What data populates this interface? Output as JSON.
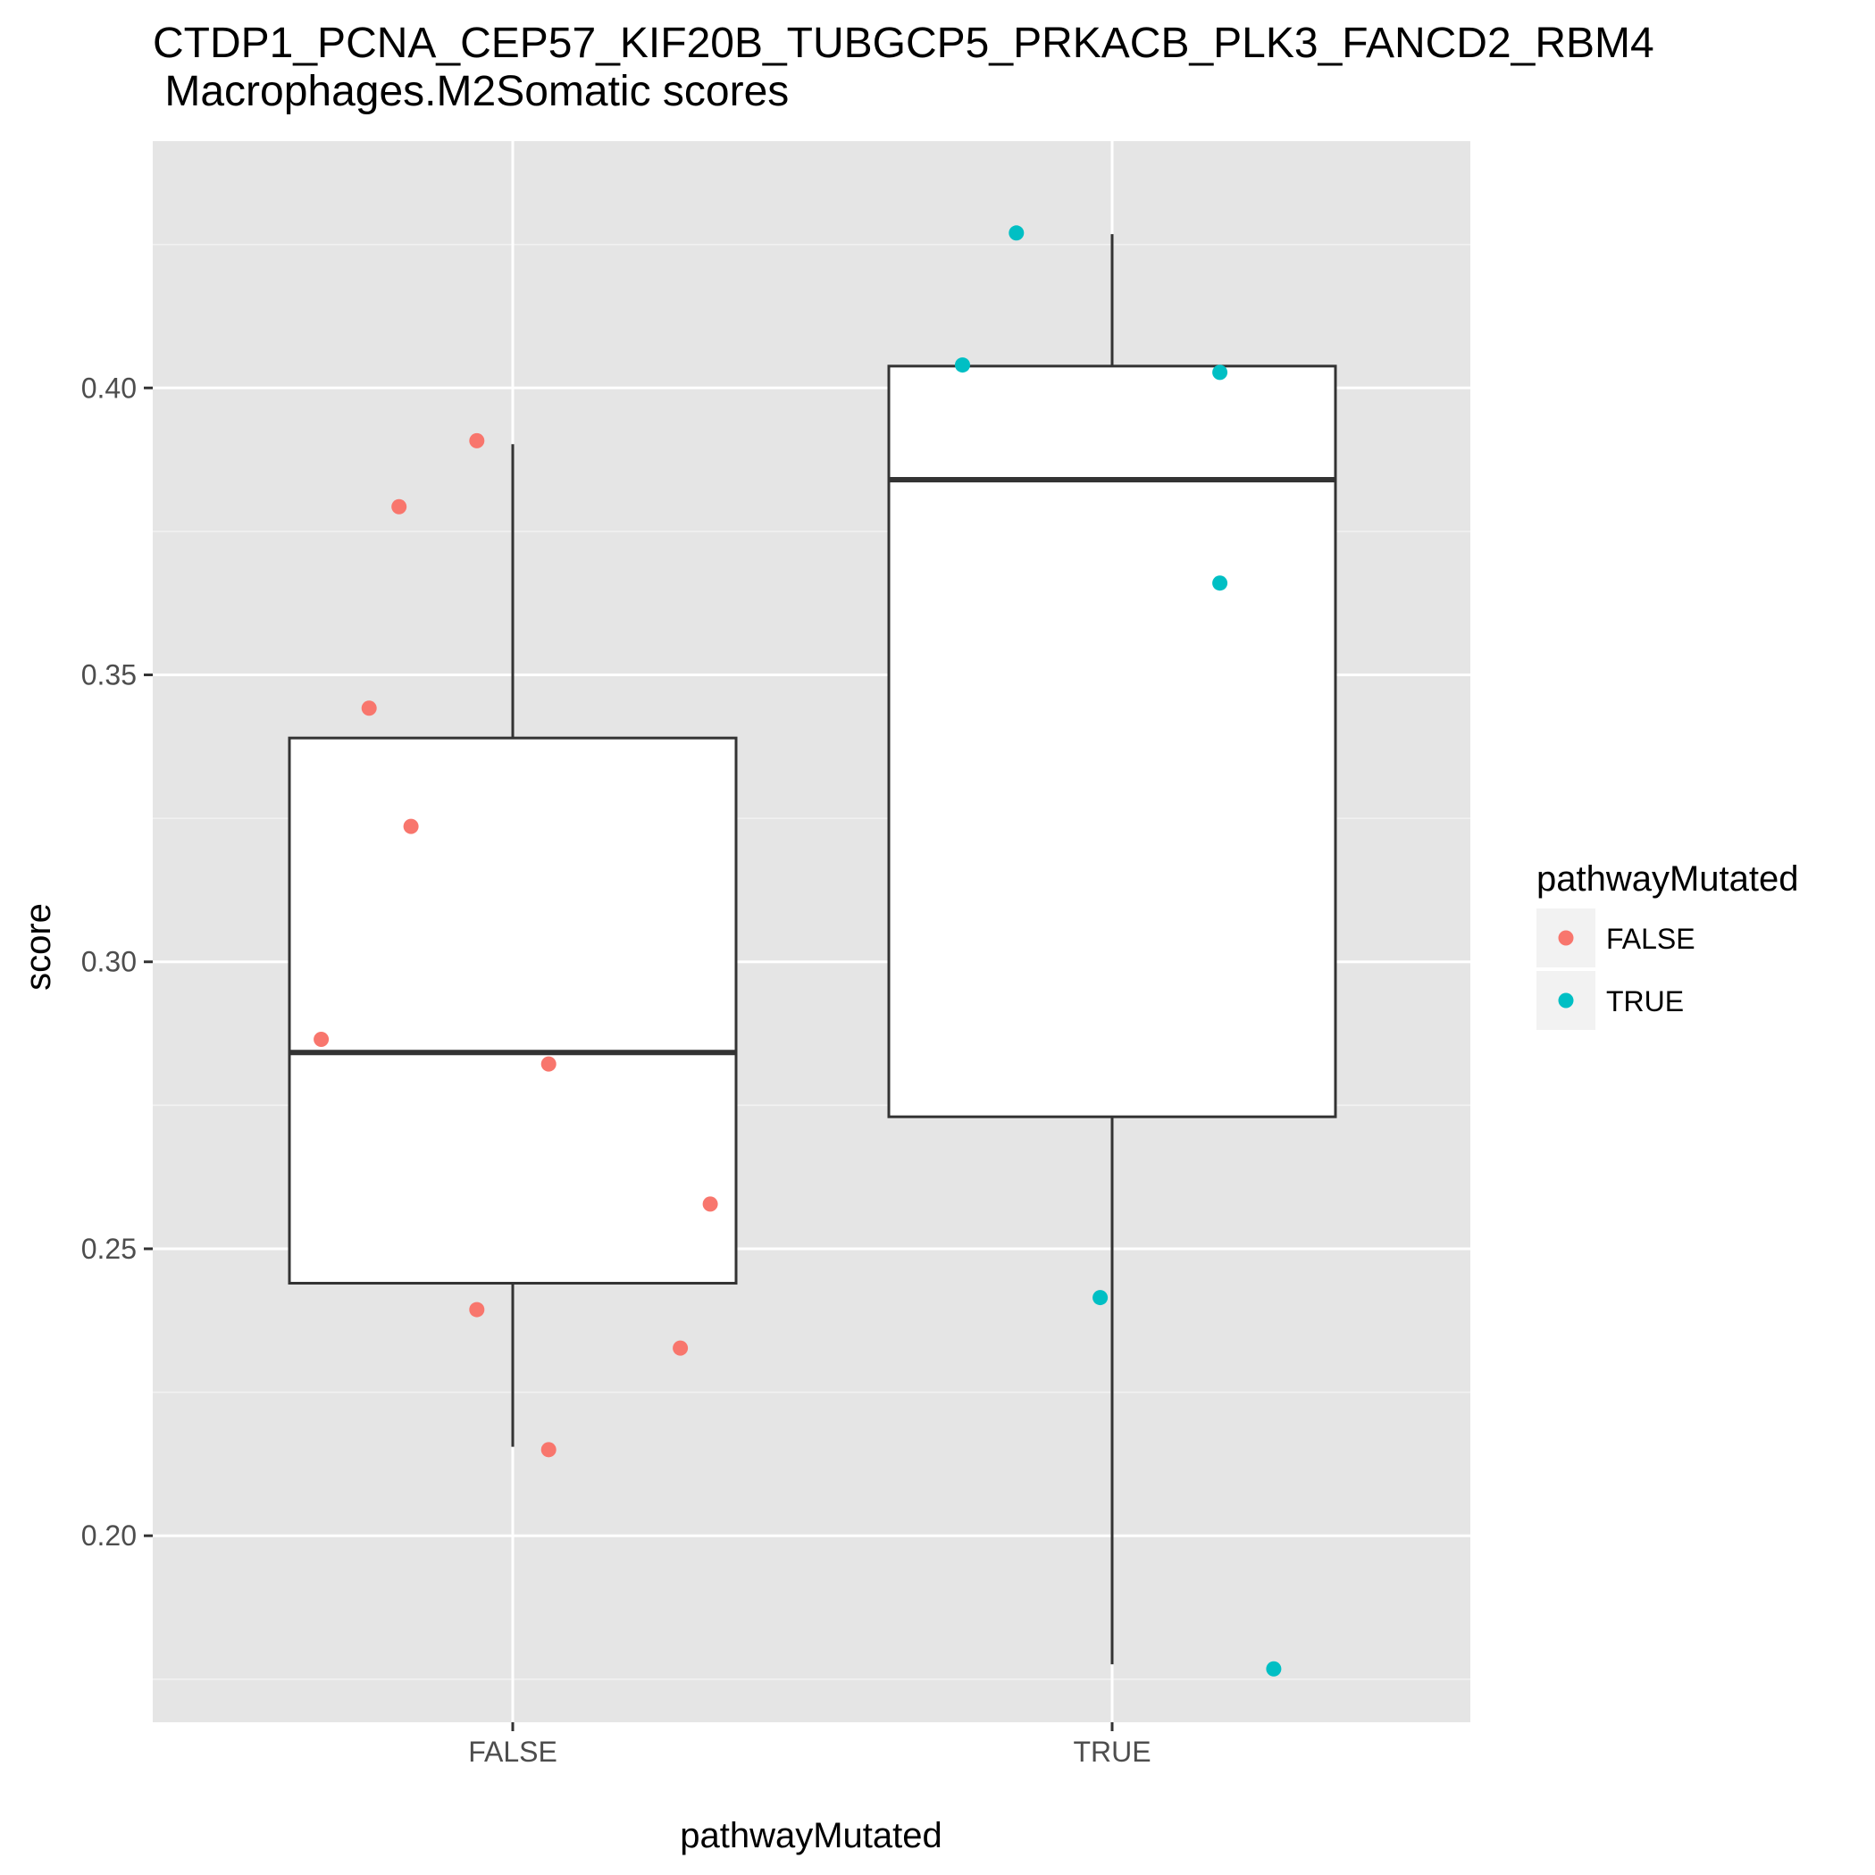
{
  "chart_data": {
    "type": "box",
    "title": "CTDP1_PCNA_CEP57_KIF20B_TUBGCP5_PRKACB_PLK3_FANCD2_RBM4",
    "subtitle": " Macrophages.M2Somatic scores",
    "xlabel": "pathwayMutated",
    "ylabel": "score",
    "categories": [
      "FALSE",
      "TRUE"
    ],
    "ylim": [
      0.1675,
      0.443
    ],
    "yticks": [
      0.2,
      0.25,
      0.3,
      0.35,
      0.4
    ],
    "ytick_labels": [
      "0.20",
      "0.25",
      "0.30",
      "0.35",
      "0.40"
    ],
    "grid": true,
    "legend": {
      "title": "pathwayMutated",
      "position": "right",
      "entries": [
        {
          "label": "FALSE",
          "color": "#F8766D"
        },
        {
          "label": "TRUE",
          "color": "#00BFC4"
        }
      ]
    },
    "boxes": [
      {
        "category": "FALSE",
        "whisker_low": 0.2155,
        "q1": 0.244,
        "median": 0.2842,
        "q3": 0.339,
        "whisker_high": 0.3902
      },
      {
        "category": "TRUE",
        "whisker_low": 0.1776,
        "q1": 0.273,
        "median": 0.384,
        "q3": 0.4038,
        "whisker_high": 0.4268
      }
    ],
    "series": [
      {
        "name": "FALSE",
        "color": "#F8766D",
        "points": [
          {
            "category": "FALSE",
            "jitter": -0.32,
            "y": 0.2865
          },
          {
            "category": "FALSE",
            "jitter": -0.24,
            "y": 0.3442
          },
          {
            "category": "FALSE",
            "jitter": -0.19,
            "y": 0.3793
          },
          {
            "category": "FALSE",
            "jitter": -0.17,
            "y": 0.3236
          },
          {
            "category": "FALSE",
            "jitter": -0.06,
            "y": 0.3908
          },
          {
            "category": "FALSE",
            "jitter": -0.06,
            "y": 0.2394
          },
          {
            "category": "FALSE",
            "jitter": 0.06,
            "y": 0.2822
          },
          {
            "category": "FALSE",
            "jitter": 0.06,
            "y": 0.215
          },
          {
            "category": "FALSE",
            "jitter": 0.28,
            "y": 0.2327
          },
          {
            "category": "FALSE",
            "jitter": 0.33,
            "y": 0.2578
          }
        ]
      },
      {
        "name": "TRUE",
        "color": "#00BFC4",
        "points": [
          {
            "category": "TRUE",
            "jitter": -0.16,
            "y": 0.427
          },
          {
            "category": "TRUE",
            "jitter": -0.25,
            "y": 0.404
          },
          {
            "category": "TRUE",
            "jitter": 0.18,
            "y": 0.4027
          },
          {
            "category": "TRUE",
            "jitter": 0.18,
            "y": 0.366
          },
          {
            "category": "TRUE",
            "jitter": -0.02,
            "y": 0.2415
          },
          {
            "category": "TRUE",
            "jitter": 0.27,
            "y": 0.1768
          }
        ]
      }
    ]
  }
}
